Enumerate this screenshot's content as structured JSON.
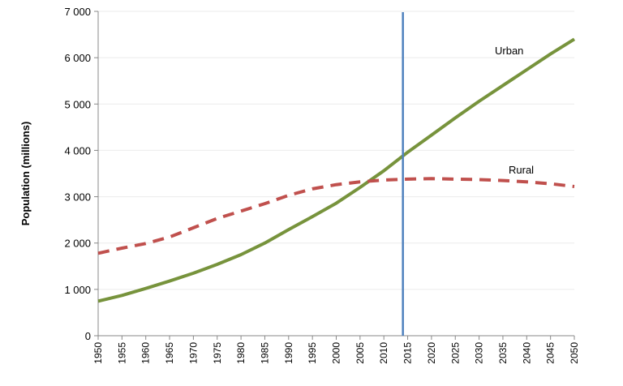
{
  "chart_data": {
    "type": "line",
    "title": "",
    "xlabel": "",
    "ylabel": "Population (millions)",
    "xlim": [
      1950,
      2050
    ],
    "ylim": [
      0,
      7000
    ],
    "grid": "horizontal",
    "y_ticks": [
      "0",
      "1 000",
      "2 000",
      "3 000",
      "4 000",
      "5 000",
      "6 000",
      "7 000"
    ],
    "y_tick_values": [
      0,
      1000,
      2000,
      3000,
      4000,
      5000,
      6000,
      7000
    ],
    "x": [
      1950,
      1955,
      1960,
      1965,
      1970,
      1975,
      1980,
      1985,
      1990,
      1995,
      2000,
      2005,
      2010,
      2015,
      2020,
      2025,
      2030,
      2035,
      2040,
      2045,
      2050
    ],
    "series": [
      {
        "name": "Urban",
        "color": "#77933c",
        "style": "solid",
        "values": [
          746,
          870,
          1020,
          1180,
          1350,
          1540,
          1750,
          2000,
          2290,
          2570,
          2860,
          3200,
          3560,
          3960,
          4330,
          4700,
          5060,
          5400,
          5740,
          6080,
          6400
        ]
      },
      {
        "name": "Rural",
        "color": "#c0504d",
        "style": "dashed",
        "values": [
          1780,
          1890,
          1990,
          2130,
          2330,
          2530,
          2690,
          2850,
          3030,
          3170,
          3260,
          3320,
          3360,
          3380,
          3390,
          3380,
          3370,
          3350,
          3320,
          3280,
          3220
        ]
      }
    ],
    "vertical_marker": {
      "x": 2014,
      "color": "#4f81bd"
    }
  }
}
